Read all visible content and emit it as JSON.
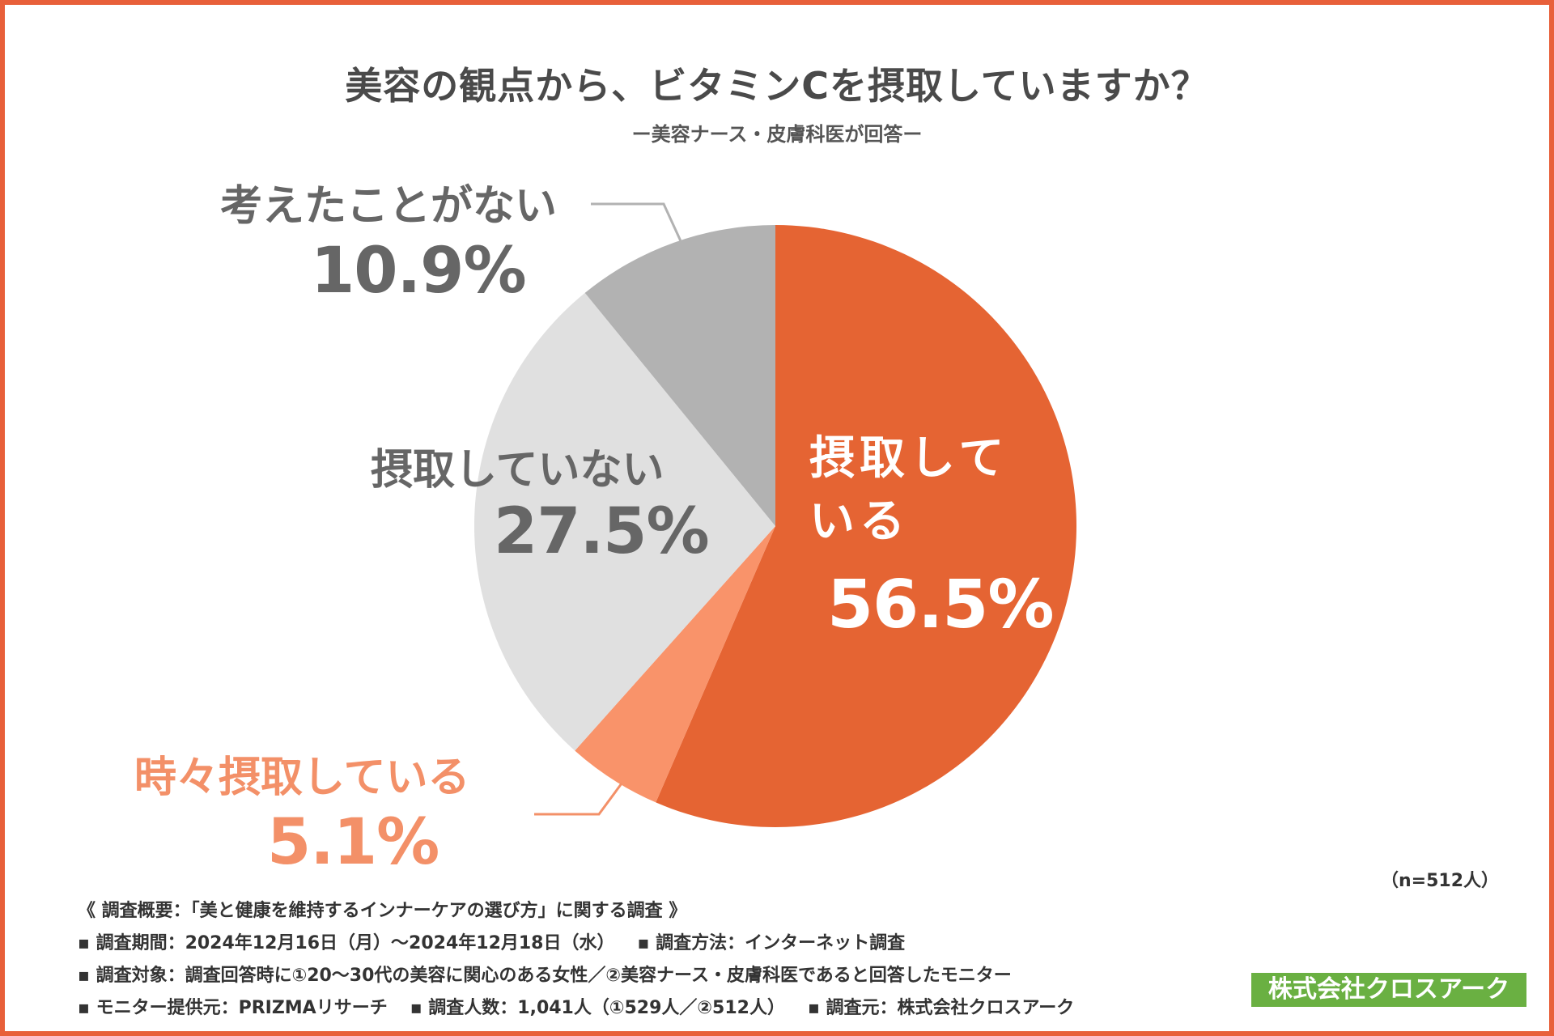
{
  "title": "美容の観点から、ビタミンCを摂取していますか？",
  "subtitle": "ー美容ナース・皮膚科医が回答ー",
  "chart_data": {
    "type": "pie",
    "title": "美容の観点から、ビタミンCを摂取していますか？",
    "subtitle": "ー美容ナース・皮膚科医が回答ー",
    "start": "12 o'clock, clockwise",
    "slices": [
      {
        "label": "摂取している",
        "value": 56.5,
        "display": "56.5%",
        "color": "#e56433"
      },
      {
        "label": "時々摂取している",
        "value": 5.1,
        "display": "5.1%",
        "color": "#f9936a"
      },
      {
        "label": "摂取していない",
        "value": 27.5,
        "display": "27.5%",
        "color": "#e0e0e0"
      },
      {
        "label": "考えたことがない",
        "value": 10.9,
        "display": "10.9%",
        "color": "#b2b2b2"
      }
    ],
    "sample": "（n=512人）"
  },
  "labels": {
    "regular_name": "摂取している",
    "regular_val": "56.5%",
    "some_name": "時々摂取している",
    "some_val": "5.1%",
    "not_name": "摂取していない",
    "not_val": "27.5%",
    "never_name": "考えたことがない",
    "never_val": "10.9%"
  },
  "sample_note": "（n=512人）",
  "notes": {
    "overview": "《 調査概要：「美と健康を維持するインナーケアの選び方」に関する調査 》",
    "period": "▪ 調査期間：2024年12月16日（月）〜2024年12月18日（水）",
    "method": "▪ 調査方法：インターネット調査",
    "target": "▪ 調査対象：調査回答時に①20〜30代の美容に関心のある女性／②美容ナース・皮膚科医であると回答したモニター",
    "provider": "▪ モニター提供元：PRIZMAリサーチ",
    "count": "▪ 調査人数：1,041人（①529人／②512人）",
    "source": "▪ 調査元：株式会社クロスアーク"
  },
  "company": "株式会社クロスアーク"
}
